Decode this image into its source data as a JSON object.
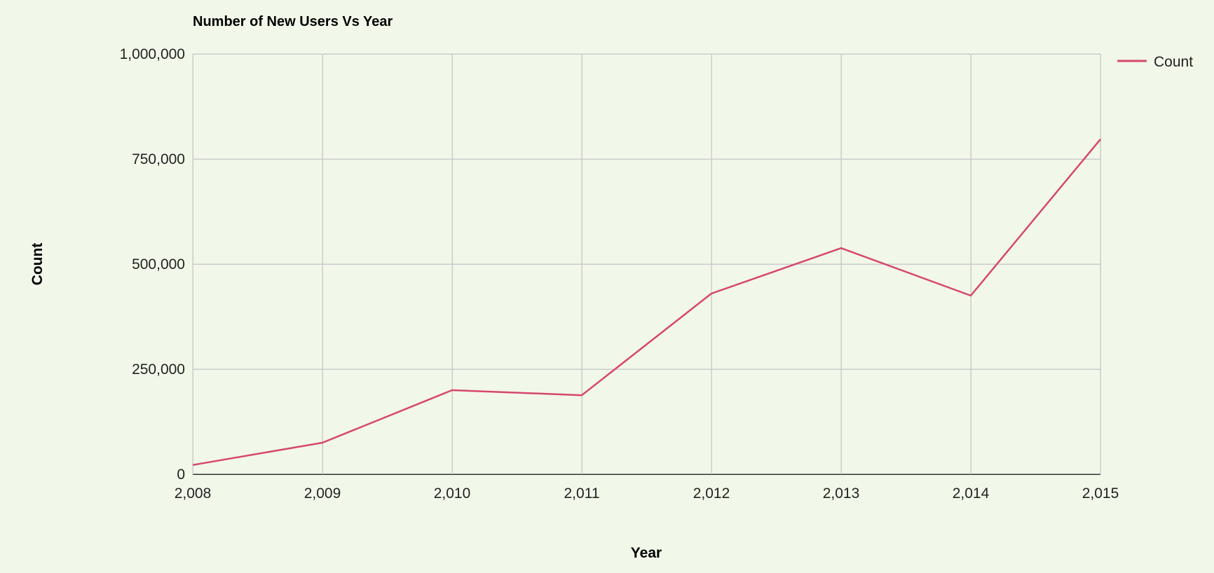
{
  "chart_data": {
    "type": "line",
    "title": "Number of New Users Vs Year",
    "xlabel": "Year",
    "ylabel": "Count",
    "x": [
      2008,
      2009,
      2010,
      2011,
      2012,
      2013,
      2014,
      2015
    ],
    "x_tick_labels": [
      "2,008",
      "2,009",
      "2,010",
      "2,011",
      "2,012",
      "2,013",
      "2,014",
      "2,015"
    ],
    "y_ticks": [
      0,
      250000,
      500000,
      750000,
      1000000
    ],
    "y_tick_labels": [
      "0",
      "250,000",
      "500,000",
      "750,000",
      "1,000,000"
    ],
    "ylim": [
      0,
      1000000
    ],
    "xlim": [
      2008,
      2015
    ],
    "grid": true,
    "legend_position": "top-right",
    "series": [
      {
        "name": "Count",
        "color": "#d6466f",
        "values": [
          22000,
          75000,
          200000,
          188000,
          430000,
          538000,
          425000,
          797000
        ]
      }
    ]
  }
}
